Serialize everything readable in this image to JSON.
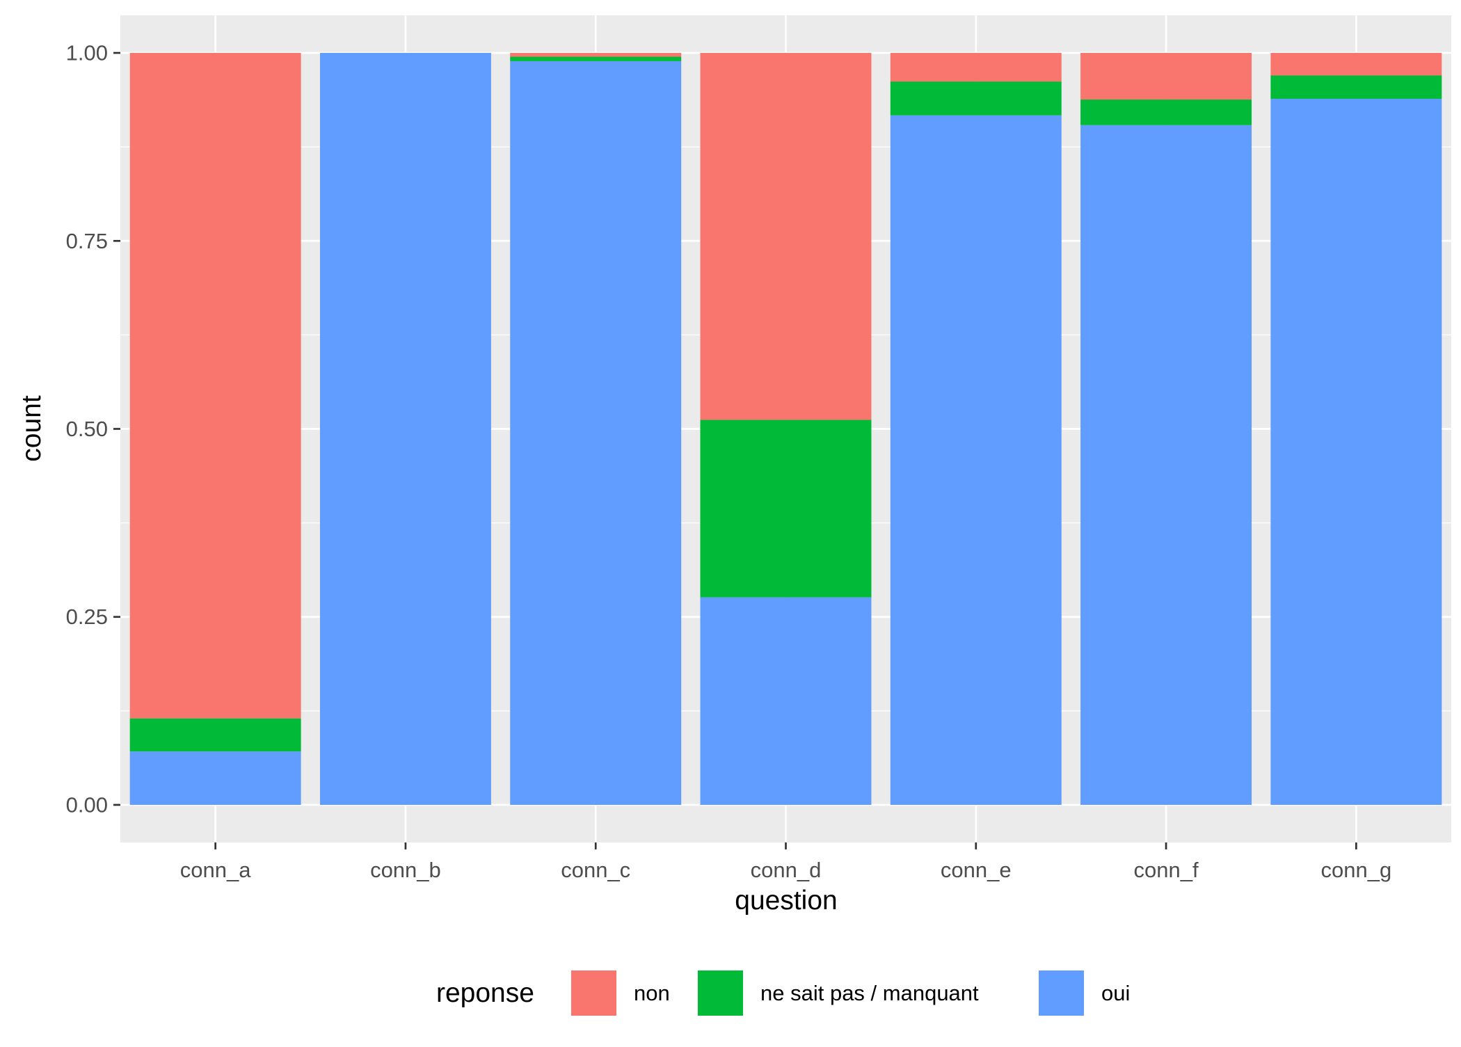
{
  "chart_data": {
    "type": "bar",
    "stacked": true,
    "categories": [
      "conn_a",
      "conn_b",
      "conn_c",
      "conn_d",
      "conn_e",
      "conn_f",
      "conn_g"
    ],
    "series": [
      {
        "name": "non",
        "color": "#F8766D",
        "values": [
          0.885,
          0.0,
          0.005,
          0.488,
          0.038,
          0.062,
          0.03
        ]
      },
      {
        "name": "ne sait pas / manquant",
        "color": "#00BA38",
        "values": [
          0.044,
          0.0,
          0.006,
          0.236,
          0.045,
          0.034,
          0.031
        ]
      },
      {
        "name": "oui",
        "color": "#619CFF",
        "values": [
          0.071,
          1.0,
          0.989,
          0.276,
          0.917,
          0.904,
          0.939
        ]
      }
    ],
    "stack_order_bottom_to_top": [
      "oui",
      "ne sait pas / manquant",
      "non"
    ],
    "xlabel": "question",
    "ylabel": "count",
    "ylim": [
      -0.05,
      1.05
    ],
    "yticks": [
      0.0,
      0.25,
      0.5,
      0.75,
      1.0
    ],
    "ytick_labels": [
      "0.00",
      "0.25",
      "0.50",
      "0.75",
      "1.00"
    ],
    "legend_title": "reponse",
    "legend_position": "bottom",
    "grid": true,
    "panel_background": "#EBEBEB",
    "grid_color": "#FFFFFF"
  }
}
